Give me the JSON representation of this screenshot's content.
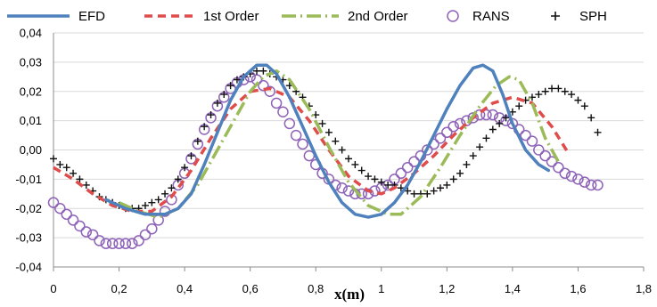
{
  "chart_data": {
    "type": "line",
    "xlabel": "x(m)",
    "ylabel": "",
    "xlim": [
      0,
      1.8
    ],
    "ylim": [
      -0.04,
      0.04
    ],
    "x_ticks": [
      "0",
      "0,2",
      "0,4",
      "0,6",
      "0,8",
      "1",
      "1,2",
      "1,4",
      "1,6",
      "1,8"
    ],
    "y_ticks": [
      "-0,04",
      "-0,03",
      "-0,02",
      "-0,01",
      "0,00",
      "0,01",
      "0,02",
      "0,03",
      "0,04"
    ],
    "grid": "horizontal",
    "legend_position": "top",
    "series": [
      {
        "name": "EFD",
        "style": "solid",
        "color": "#4f81bd",
        "x": [
          0.16,
          0.22,
          0.28,
          0.34,
          0.38,
          0.42,
          0.46,
          0.5,
          0.54,
          0.58,
          0.62,
          0.65,
          0.68,
          0.72,
          0.76,
          0.8,
          0.84,
          0.88,
          0.92,
          0.96,
          1.0,
          1.04,
          1.08,
          1.12,
          1.16,
          1.2,
          1.24,
          1.28,
          1.31,
          1.34,
          1.37,
          1.4,
          1.44,
          1.48,
          1.51
        ],
        "y": [
          -0.017,
          -0.02,
          -0.022,
          -0.022,
          -0.02,
          -0.015,
          -0.005,
          0.006,
          0.017,
          0.025,
          0.029,
          0.029,
          0.026,
          0.018,
          0.008,
          -0.002,
          -0.011,
          -0.018,
          -0.022,
          -0.023,
          -0.022,
          -0.018,
          -0.012,
          -0.004,
          0.005,
          0.014,
          0.022,
          0.028,
          0.029,
          0.027,
          0.019,
          0.009,
          0.0,
          -0.005,
          -0.007
        ]
      },
      {
        "name": "1st Order",
        "style": "dashed",
        "color": "#e04b4b",
        "x": [
          0.0,
          0.06,
          0.12,
          0.18,
          0.24,
          0.3,
          0.36,
          0.42,
          0.48,
          0.54,
          0.6,
          0.66,
          0.72,
          0.78,
          0.84,
          0.9,
          0.96,
          1.0,
          1.04,
          1.1,
          1.16,
          1.22,
          1.28,
          1.34,
          1.4,
          1.46,
          1.52,
          1.57
        ],
        "y": [
          -0.006,
          -0.01,
          -0.015,
          -0.019,
          -0.021,
          -0.021,
          -0.016,
          -0.007,
          0.004,
          0.014,
          0.02,
          0.021,
          0.018,
          0.01,
          0.0,
          -0.009,
          -0.014,
          -0.015,
          -0.013,
          -0.008,
          -0.002,
          0.005,
          0.011,
          0.016,
          0.018,
          0.016,
          0.008,
          -0.001
        ]
      },
      {
        "name": "2nd Order",
        "style": "dash-dot",
        "color": "#9bbb59",
        "x": [
          0.2,
          0.26,
          0.32,
          0.38,
          0.44,
          0.5,
          0.56,
          0.6,
          0.64,
          0.68,
          0.72,
          0.78,
          0.84,
          0.9,
          0.96,
          1.02,
          1.06,
          1.12,
          1.18,
          1.24,
          1.3,
          1.35,
          1.39,
          1.42,
          1.46,
          1.5,
          1.54
        ],
        "y": [
          -0.018,
          -0.021,
          -0.023,
          -0.02,
          -0.012,
          0.0,
          0.012,
          0.02,
          0.025,
          0.027,
          0.024,
          0.014,
          0.001,
          -0.011,
          -0.019,
          -0.022,
          -0.022,
          -0.016,
          -0.006,
          0.005,
          0.015,
          0.022,
          0.025,
          0.024,
          0.016,
          0.004,
          -0.004
        ]
      },
      {
        "name": "RANS",
        "style": "circle-markers",
        "color": "#8e63b8",
        "x": [
          0.0,
          0.02,
          0.04,
          0.06,
          0.08,
          0.1,
          0.12,
          0.14,
          0.16,
          0.18,
          0.2,
          0.22,
          0.24,
          0.26,
          0.28,
          0.3,
          0.32,
          0.34,
          0.36,
          0.38,
          0.4,
          0.42,
          0.44,
          0.46,
          0.48,
          0.5,
          0.52,
          0.54,
          0.56,
          0.58,
          0.6,
          0.62,
          0.64,
          0.66,
          0.68,
          0.7,
          0.72,
          0.74,
          0.76,
          0.78,
          0.8,
          0.82,
          0.84,
          0.86,
          0.88,
          0.9,
          0.92,
          0.94,
          0.96,
          0.98,
          1.0,
          1.02,
          1.04,
          1.06,
          1.08,
          1.1,
          1.12,
          1.14,
          1.16,
          1.18,
          1.2,
          1.22,
          1.24,
          1.26,
          1.28,
          1.3,
          1.32,
          1.34,
          1.36,
          1.38,
          1.4,
          1.42,
          1.44,
          1.46,
          1.48,
          1.5,
          1.52,
          1.54,
          1.56,
          1.58,
          1.6,
          1.62,
          1.64,
          1.66
        ],
        "y": [
          -0.018,
          -0.02,
          -0.022,
          -0.024,
          -0.026,
          -0.028,
          -0.029,
          -0.031,
          -0.032,
          -0.032,
          -0.032,
          -0.032,
          -0.032,
          -0.031,
          -0.029,
          -0.027,
          -0.024,
          -0.021,
          -0.017,
          -0.012,
          -0.008,
          -0.003,
          0.002,
          0.007,
          0.011,
          0.015,
          0.018,
          0.021,
          0.023,
          0.024,
          0.025,
          0.024,
          0.022,
          0.02,
          0.016,
          0.013,
          0.009,
          0.005,
          0.002,
          -0.002,
          -0.005,
          -0.008,
          -0.01,
          -0.012,
          -0.013,
          -0.014,
          -0.015,
          -0.015,
          -0.015,
          -0.014,
          -0.013,
          -0.012,
          -0.01,
          -0.008,
          -0.006,
          -0.004,
          -0.002,
          0.0,
          0.002,
          0.004,
          0.006,
          0.008,
          0.009,
          0.01,
          0.011,
          0.012,
          0.012,
          0.012,
          0.011,
          0.01,
          0.009,
          0.007,
          0.005,
          0.003,
          0.0,
          -0.002,
          -0.004,
          -0.006,
          -0.008,
          -0.009,
          -0.01,
          -0.011,
          -0.012,
          -0.012
        ]
      },
      {
        "name": "SPH",
        "style": "plus-markers",
        "color": "#111111",
        "x": [
          0.0,
          0.02,
          0.04,
          0.06,
          0.08,
          0.1,
          0.12,
          0.14,
          0.16,
          0.18,
          0.2,
          0.22,
          0.24,
          0.26,
          0.28,
          0.3,
          0.32,
          0.34,
          0.36,
          0.38,
          0.4,
          0.42,
          0.44,
          0.46,
          0.48,
          0.5,
          0.52,
          0.54,
          0.56,
          0.58,
          0.6,
          0.62,
          0.64,
          0.66,
          0.68,
          0.7,
          0.72,
          0.74,
          0.76,
          0.78,
          0.8,
          0.82,
          0.84,
          0.86,
          0.88,
          0.9,
          0.92,
          0.94,
          0.96,
          0.98,
          1.0,
          1.02,
          1.04,
          1.06,
          1.08,
          1.1,
          1.12,
          1.14,
          1.16,
          1.18,
          1.2,
          1.22,
          1.24,
          1.26,
          1.28,
          1.3,
          1.32,
          1.34,
          1.36,
          1.38,
          1.4,
          1.42,
          1.44,
          1.46,
          1.48,
          1.5,
          1.52,
          1.54,
          1.56,
          1.58,
          1.6,
          1.62,
          1.64,
          1.66
        ],
        "y": [
          -0.003,
          -0.005,
          -0.006,
          -0.008,
          -0.01,
          -0.012,
          -0.014,
          -0.016,
          -0.017,
          -0.018,
          -0.019,
          -0.02,
          -0.02,
          -0.02,
          -0.019,
          -0.018,
          -0.017,
          -0.015,
          -0.013,
          -0.01,
          -0.006,
          -0.002,
          0.003,
          0.008,
          0.012,
          0.016,
          0.019,
          0.022,
          0.024,
          0.025,
          0.026,
          0.027,
          0.027,
          0.026,
          0.025,
          0.024,
          0.022,
          0.02,
          0.018,
          0.015,
          0.012,
          0.009,
          0.006,
          0.003,
          0.0,
          -0.003,
          -0.005,
          -0.007,
          -0.009,
          -0.01,
          -0.011,
          -0.012,
          -0.012,
          -0.013,
          -0.014,
          -0.015,
          -0.015,
          -0.015,
          -0.014,
          -0.013,
          -0.012,
          -0.01,
          -0.008,
          -0.005,
          -0.002,
          0.001,
          0.004,
          0.007,
          0.009,
          0.011,
          0.013,
          0.015,
          0.017,
          0.018,
          0.019,
          0.02,
          0.021,
          0.021,
          0.02,
          0.019,
          0.017,
          0.015,
          0.011,
          0.006
        ]
      }
    ]
  }
}
